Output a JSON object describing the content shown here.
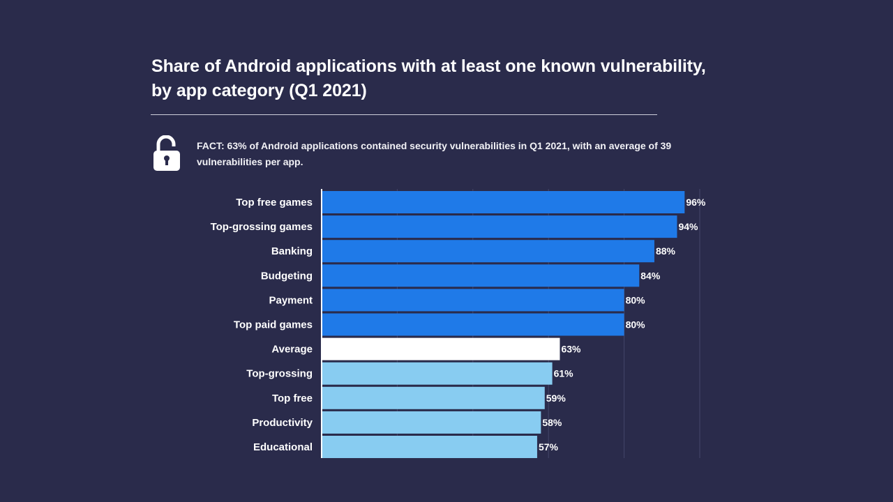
{
  "title_lines": [
    "Share of Android applications with at least one known vulnerability,",
    "by app category  (Q1 2021)"
  ],
  "fact": {
    "icon": "unlocked-padlock-icon",
    "lines": [
      "FACT: 63% of Android applications contained security vulnerabilities in Q1 2021, with an average of 39",
      "vulnerabilities per app."
    ]
  },
  "colors": {
    "background": "#2a2b4b",
    "high": "#1f7ae8",
    "average": "#ffffff",
    "low": "#88ccf1"
  },
  "chart_data": {
    "type": "bar",
    "orientation": "horizontal",
    "categories": [
      "Top free games",
      "Top-grossing games",
      "Banking",
      "Budgeting",
      "Payment",
      "Top paid games",
      "Average",
      "Top-grossing",
      "Top free",
      "Productivity",
      "Educational"
    ],
    "values": [
      96,
      94,
      88,
      84,
      80,
      80,
      63,
      61,
      59,
      58,
      57
    ],
    "value_labels": [
      "96%",
      "94%",
      "88%",
      "84%",
      "80%",
      "80%",
      "63%",
      "61%",
      "59%",
      "58%",
      "57%"
    ],
    "bar_groups": [
      "high",
      "high",
      "high",
      "high",
      "high",
      "high",
      "average",
      "low",
      "low",
      "low",
      "low"
    ],
    "unit": "%",
    "xlim": [
      0,
      110
    ],
    "grid": true
  }
}
